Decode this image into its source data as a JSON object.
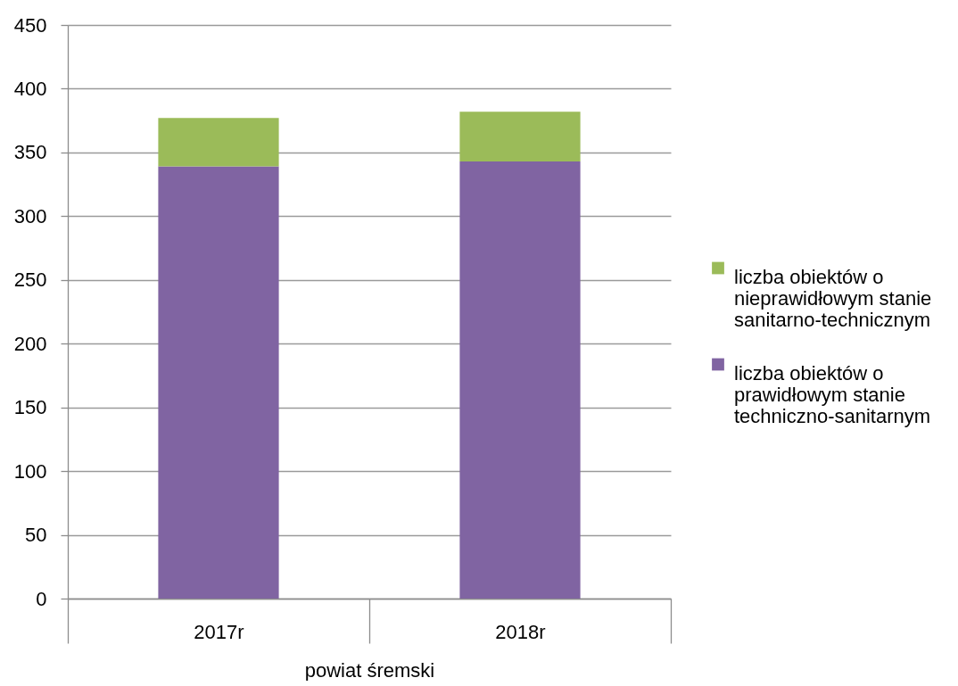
{
  "chart_data": {
    "type": "bar",
    "stacked": true,
    "categories": [
      "2017r",
      "2018r"
    ],
    "xlabel": "powiat śremski",
    "series": [
      {
        "name": "liczba obiektów o prawidłowym stanie techniczno-sanitarnym",
        "color": "#8064a2",
        "values": [
          339,
          343
        ]
      },
      {
        "name": "liczba obiektów o nieprawidłowym stanie sanitarno-technicznym",
        "color": "#9bbb59",
        "values": [
          38,
          39
        ]
      }
    ],
    "ylim": [
      0,
      450
    ],
    "yticks": [
      0,
      50,
      100,
      150,
      200,
      250,
      300,
      350,
      400,
      450
    ],
    "grid": "y",
    "legend": "right"
  }
}
